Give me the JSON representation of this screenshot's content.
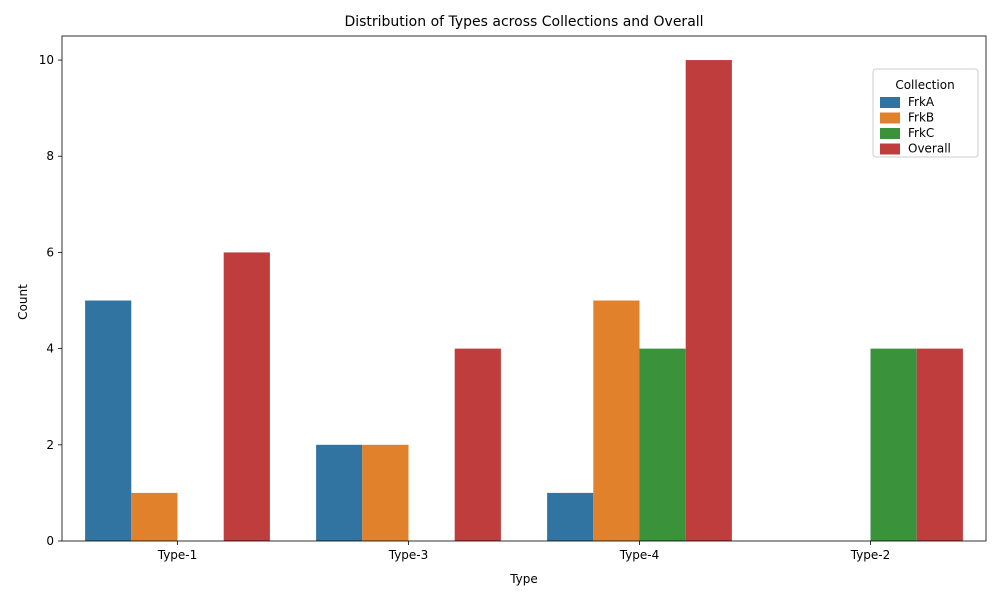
{
  "chart_data": {
    "type": "bar",
    "title": "Distribution of Types across Collections and Overall",
    "xlabel": "Type",
    "ylabel": "Count",
    "categories": [
      "Type-1",
      "Type-3",
      "Type-4",
      "Type-2"
    ],
    "ylim": [
      0,
      10.5
    ],
    "yticks": [
      0,
      2,
      4,
      6,
      8,
      10
    ],
    "grid": false,
    "legend": {
      "title": "Collection",
      "placement": "top-right"
    },
    "series": [
      {
        "name": "FrkA",
        "color": "#3274a1",
        "values": [
          5,
          2,
          1,
          0
        ]
      },
      {
        "name": "FrkB",
        "color": "#e1812c",
        "values": [
          1,
          2,
          5,
          0
        ]
      },
      {
        "name": "FrkC",
        "color": "#3a923a",
        "values": [
          0,
          0,
          4,
          4
        ]
      },
      {
        "name": "Overall",
        "color": "#c03d3e",
        "values": [
          6,
          4,
          10,
          4
        ]
      }
    ]
  }
}
